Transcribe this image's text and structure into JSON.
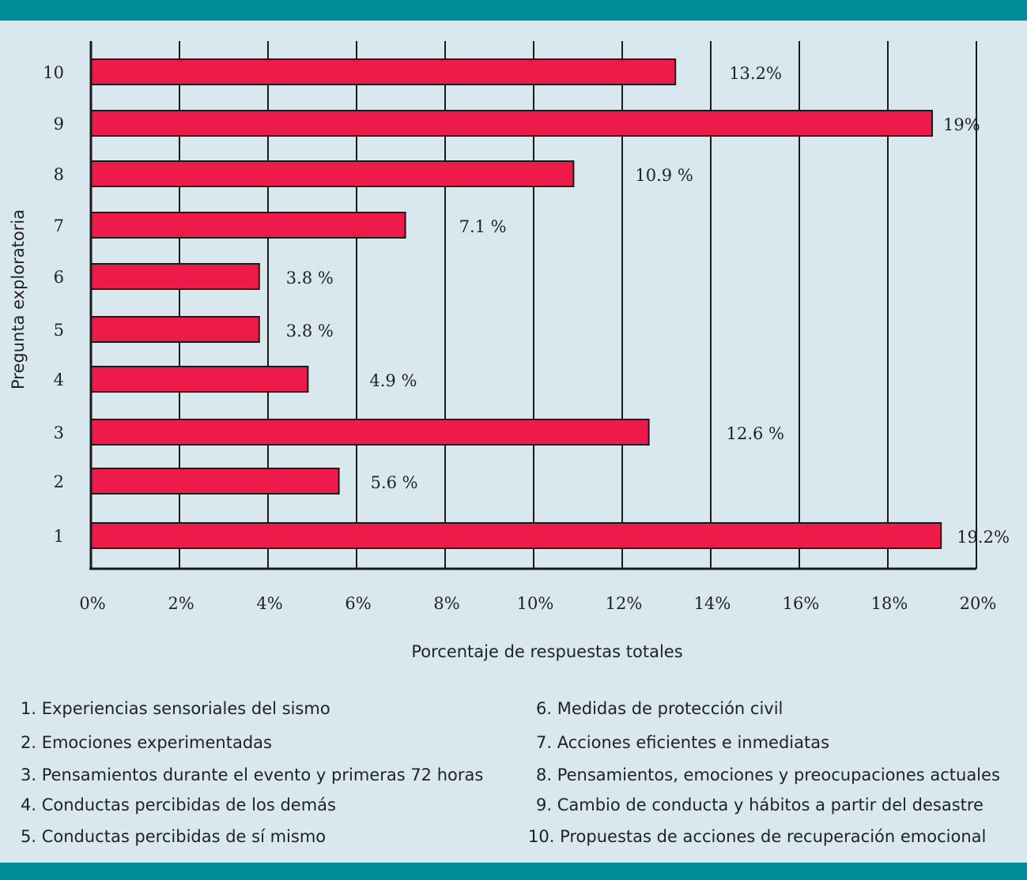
{
  "chart_data": {
    "type": "bar",
    "orientation": "horizontal",
    "xlabel": "Porcentaje de respuestas totales",
    "ylabel": "Pregunta exploratoria",
    "xlim": [
      0,
      20
    ],
    "x_ticks": [
      0,
      2,
      4,
      6,
      8,
      10,
      12,
      14,
      16,
      18,
      20
    ],
    "x_tick_labels": [
      "0%",
      "2%",
      "4%",
      "6%",
      "8%",
      "10%",
      "12%",
      "14%",
      "16%",
      "18%",
      "20%"
    ],
    "categories": [
      "10",
      "9",
      "8",
      "7",
      "6",
      "5",
      "4",
      "3",
      "2",
      "1"
    ],
    "values": [
      13.2,
      19,
      10.9,
      7.1,
      3.8,
      3.8,
      4.9,
      12.6,
      5.6,
      19.2
    ],
    "value_labels": [
      "13.2%",
      "19%",
      "10.9 %",
      "7.1 %",
      "3.8 %",
      "3.8 %",
      "4.9 %",
      "12.6 %",
      "5.6 %",
      "19.2%"
    ],
    "grid": true,
    "bar_color": "#ee1a4a"
  },
  "legend": [
    "1. Experiencias sensoriales del sismo",
    "2. Emociones experimentadas",
    "3. Pensamientos durante el evento y primeras 72 horas",
    "4. Conductas percibidas de los demás",
    "5. Conductas percibidas de sí mismo",
    "6. Medidas de protección civil",
    "7. Acciones eficientes e inmediatas",
    "8. Pensamientos, emociones y preocupaciones actuales",
    "9. Cambio de conducta y hábitos a partir del desastre",
    "10. Propuestas de acciones de recuperación emocional"
  ],
  "colors": {
    "band": "#008b96",
    "background": "#d9e8ee",
    "bar": "#ee1a4a"
  }
}
